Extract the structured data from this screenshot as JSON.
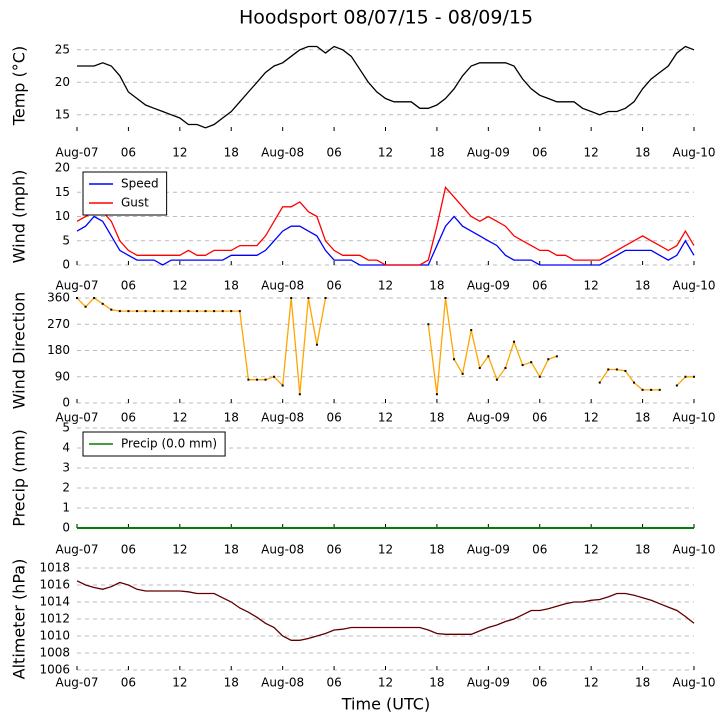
{
  "chart_data": [
    {
      "type": "line",
      "title": "Hoodsport 08/07/15 - 08/09/15",
      "ylabel": "Temp (°C)",
      "x": [
        0,
        1,
        2,
        3,
        4,
        5,
        6,
        7,
        8,
        9,
        10,
        11,
        12,
        13,
        14,
        15,
        16,
        17,
        18,
        19,
        20,
        21,
        22,
        23,
        24,
        25,
        26,
        27,
        28,
        29,
        30,
        31,
        32,
        33,
        34,
        35,
        36,
        37,
        38,
        39,
        40,
        41,
        42,
        43,
        44,
        45,
        46,
        47,
        48,
        49,
        50,
        51,
        52,
        53,
        54,
        55,
        56,
        57,
        58,
        59,
        60,
        61,
        62,
        63,
        64,
        65,
        66,
        67,
        68,
        69,
        70,
        71,
        72
      ],
      "series": [
        {
          "color": "#000000",
          "values": [
            22.5,
            22.5,
            22.5,
            23,
            22.5,
            21,
            18.5,
            17.5,
            16.5,
            16,
            15.5,
            15,
            14.5,
            13.5,
            13.5,
            13,
            13.5,
            14.5,
            15.5,
            17,
            18.5,
            20,
            21.5,
            22.5,
            23,
            24,
            25,
            25.5,
            25.5,
            24.5,
            25.5,
            25,
            24,
            22,
            20,
            18.5,
            17.5,
            17,
            17,
            17,
            16,
            16,
            16.5,
            17.5,
            19,
            21,
            22.5,
            23,
            23,
            23,
            23,
            22.5,
            20.5,
            19,
            18,
            17.5,
            17,
            17,
            17,
            16,
            15.5,
            15,
            15.5,
            15.5,
            16,
            17,
            19,
            20.5,
            21.5,
            22.5,
            24.5,
            25.5,
            25
          ]
        }
      ],
      "xlim": [
        0,
        72
      ],
      "ylim": [
        12.5,
        26.5
      ],
      "yticks": [
        15,
        20,
        25
      ],
      "grid": true,
      "xticks": [
        {
          "value": 0,
          "label": "Aug-07"
        },
        {
          "value": 6,
          "label": "06"
        },
        {
          "value": 12,
          "label": "12"
        },
        {
          "value": 18,
          "label": "18"
        },
        {
          "value": 24,
          "label": "Aug-08"
        },
        {
          "value": 30,
          "label": "06"
        },
        {
          "value": 36,
          "label": "12"
        },
        {
          "value": 42,
          "label": "18"
        },
        {
          "value": 48,
          "label": "Aug-09"
        },
        {
          "value": 54,
          "label": "06"
        },
        {
          "value": 60,
          "label": "12"
        },
        {
          "value": 66,
          "label": "18"
        },
        {
          "value": 72,
          "label": "Aug-10"
        }
      ]
    },
    {
      "type": "line",
      "ylabel": "Wind (mph)",
      "legend": "upper left",
      "x": [
        0,
        1,
        2,
        3,
        4,
        5,
        6,
        7,
        8,
        9,
        10,
        11,
        12,
        13,
        14,
        15,
        16,
        17,
        18,
        19,
        20,
        21,
        22,
        23,
        24,
        25,
        26,
        27,
        28,
        29,
        30,
        31,
        32,
        33,
        34,
        35,
        36,
        37,
        38,
        39,
        40,
        41,
        42,
        43,
        44,
        45,
        46,
        47,
        48,
        49,
        50,
        51,
        52,
        53,
        54,
        55,
        56,
        57,
        58,
        59,
        60,
        61,
        62,
        63,
        64,
        65,
        66,
        67,
        68,
        69,
        70,
        71,
        72
      ],
      "series": [
        {
          "name": "Speed",
          "color": "#0000ff",
          "values": [
            7,
            8,
            10,
            9,
            6,
            3,
            2,
            1,
            1,
            1,
            0,
            1,
            1,
            1,
            1,
            1,
            1,
            1,
            2,
            2,
            2,
            2,
            3,
            5,
            7,
            8,
            8,
            7,
            6,
            3,
            1,
            1,
            1,
            0,
            0,
            0,
            0,
            0,
            0,
            0,
            0,
            0,
            4,
            8,
            10,
            8,
            7,
            6,
            5,
            4,
            2,
            1,
            1,
            1,
            0,
            0,
            0,
            0,
            0,
            0,
            0,
            0,
            1,
            2,
            3,
            3,
            3,
            3,
            2,
            1,
            2,
            5,
            2
          ]
        },
        {
          "name": "Gust",
          "color": "#ff0000",
          "values": [
            9,
            10,
            11,
            11,
            9,
            5,
            3,
            2,
            2,
            2,
            2,
            2,
            2,
            3,
            2,
            2,
            3,
            3,
            3,
            4,
            4,
            4,
            6,
            9,
            12,
            12,
            13,
            11,
            10,
            5,
            3,
            2,
            2,
            2,
            1,
            1,
            0,
            0,
            0,
            0,
            0,
            1,
            8,
            16,
            14,
            12,
            10,
            9,
            10,
            9,
            8,
            6,
            5,
            4,
            3,
            3,
            2,
            2,
            1,
            1,
            1,
            1,
            2,
            3,
            4,
            5,
            6,
            5,
            4,
            3,
            4,
            7,
            4
          ]
        }
      ],
      "xlim": [
        0,
        72
      ],
      "ylim": [
        0,
        20
      ],
      "yticks": [
        0,
        5,
        10,
        15,
        20
      ],
      "grid": true,
      "xticks": [
        {
          "value": 0,
          "label": "Aug-07"
        },
        {
          "value": 6,
          "label": "06"
        },
        {
          "value": 12,
          "label": "12"
        },
        {
          "value": 18,
          "label": "18"
        },
        {
          "value": 24,
          "label": "Aug-08"
        },
        {
          "value": 30,
          "label": "06"
        },
        {
          "value": 36,
          "label": "12"
        },
        {
          "value": 42,
          "label": "18"
        },
        {
          "value": 48,
          "label": "Aug-09"
        },
        {
          "value": 54,
          "label": "06"
        },
        {
          "value": 60,
          "label": "12"
        },
        {
          "value": 66,
          "label": "18"
        },
        {
          "value": 72,
          "label": "Aug-10"
        }
      ]
    },
    {
      "type": "line",
      "ylabel": "Wind Direction",
      "x": [
        0,
        1,
        2,
        3,
        4,
        5,
        6,
        7,
        8,
        9,
        10,
        11,
        12,
        13,
        14,
        15,
        16,
        17,
        18,
        19,
        20,
        21,
        22,
        23,
        24,
        25,
        26,
        27,
        28,
        29,
        30,
        31,
        32,
        33,
        34,
        35,
        36,
        37,
        38,
        39,
        40,
        41,
        42,
        43,
        44,
        45,
        46,
        47,
        48,
        49,
        50,
        51,
        52,
        53,
        54,
        55,
        56,
        57,
        58,
        59,
        60,
        61,
        62,
        63,
        64,
        65,
        66,
        67,
        68,
        69,
        70,
        71,
        72
      ],
      "series": [
        {
          "color": "#ffa500",
          "marker_color": "#000000",
          "values": [
            360,
            330,
            360,
            340,
            320,
            315,
            315,
            315,
            315,
            315,
            315,
            315,
            315,
            315,
            315,
            315,
            315,
            315,
            315,
            315,
            80,
            80,
            80,
            90,
            60,
            360,
            30,
            360,
            200,
            360,
            null,
            null,
            null,
            null,
            null,
            null,
            null,
            null,
            null,
            null,
            null,
            270,
            30,
            360,
            150,
            100,
            250,
            120,
            160,
            80,
            120,
            210,
            130,
            140,
            90,
            150,
            160,
            null,
            null,
            null,
            null,
            70,
            115,
            115,
            110,
            70,
            45,
            45,
            45,
            null,
            60,
            90,
            90
          ]
        }
      ],
      "xlim": [
        0,
        72
      ],
      "ylim": [
        0,
        360
      ],
      "yticks": [
        0,
        90,
        180,
        270,
        360
      ],
      "grid": true,
      "xticks": [
        {
          "value": 0,
          "label": "Aug-07"
        },
        {
          "value": 6,
          "label": "06"
        },
        {
          "value": 12,
          "label": "12"
        },
        {
          "value": 18,
          "label": "18"
        },
        {
          "value": 24,
          "label": "Aug-08"
        },
        {
          "value": 30,
          "label": "06"
        },
        {
          "value": 36,
          "label": "12"
        },
        {
          "value": 42,
          "label": "18"
        },
        {
          "value": 48,
          "label": "Aug-09"
        },
        {
          "value": 54,
          "label": "06"
        },
        {
          "value": 60,
          "label": "12"
        },
        {
          "value": 66,
          "label": "18"
        },
        {
          "value": 72,
          "label": "Aug-10"
        }
      ]
    },
    {
      "type": "line",
      "ylabel": "Precip (mm)",
      "legend": "upper left",
      "x": [
        0,
        72
      ],
      "series": [
        {
          "name": "Precip (0.0 mm)",
          "color": "#008000",
          "values": [
            0,
            0
          ]
        }
      ],
      "xlim": [
        0,
        72
      ],
      "ylim": [
        0,
        5
      ],
      "yticks": [
        0,
        1,
        2,
        3,
        4,
        5
      ],
      "grid": true,
      "xticks": [
        {
          "value": 0,
          "label": "Aug-07"
        },
        {
          "value": 6,
          "label": "06"
        },
        {
          "value": 12,
          "label": "12"
        },
        {
          "value": 18,
          "label": "18"
        },
        {
          "value": 24,
          "label": "Aug-08"
        },
        {
          "value": 30,
          "label": "06"
        },
        {
          "value": 36,
          "label": "12"
        },
        {
          "value": 42,
          "label": "18"
        },
        {
          "value": 48,
          "label": "Aug-09"
        },
        {
          "value": 54,
          "label": "06"
        },
        {
          "value": 60,
          "label": "12"
        },
        {
          "value": 66,
          "label": "18"
        },
        {
          "value": 72,
          "label": "Aug-10"
        }
      ]
    },
    {
      "type": "line",
      "ylabel": "Altimeter (hPa)",
      "xlabel": "Time (UTC)",
      "x": [
        0,
        1,
        2,
        3,
        4,
        5,
        6,
        7,
        8,
        9,
        10,
        11,
        12,
        13,
        14,
        15,
        16,
        17,
        18,
        19,
        20,
        21,
        22,
        23,
        24,
        25,
        26,
        27,
        28,
        29,
        30,
        31,
        32,
        33,
        34,
        35,
        36,
        37,
        38,
        39,
        40,
        41,
        42,
        43,
        44,
        45,
        46,
        47,
        48,
        49,
        50,
        51,
        52,
        53,
        54,
        55,
        56,
        57,
        58,
        59,
        60,
        61,
        62,
        63,
        64,
        65,
        66,
        67,
        68,
        69,
        70,
        71,
        72
      ],
      "series": [
        {
          "color": "#600000",
          "values": [
            1016.5,
            1016,
            1015.7,
            1015.5,
            1015.8,
            1016.3,
            1016,
            1015.5,
            1015.3,
            1015.3,
            1015.3,
            1015.3,
            1015.3,
            1015.2,
            1015,
            1015,
            1015,
            1014.5,
            1014,
            1013.3,
            1012.8,
            1012.2,
            1011.5,
            1011,
            1010,
            1009.5,
            1009.5,
            1009.7,
            1010,
            1010.3,
            1010.7,
            1010.8,
            1011,
            1011,
            1011,
            1011,
            1011,
            1011,
            1011,
            1011,
            1011,
            1010.7,
            1010.3,
            1010.2,
            1010.2,
            1010.2,
            1010.2,
            1010.6,
            1011,
            1011.3,
            1011.7,
            1012,
            1012.5,
            1013,
            1013,
            1013.2,
            1013.5,
            1013.8,
            1014,
            1014,
            1014.2,
            1014.3,
            1014.6,
            1015,
            1015,
            1014.8,
            1014.5,
            1014.2,
            1013.8,
            1013.4,
            1013,
            1012.3,
            1011.5
          ]
        }
      ],
      "xlim": [
        0,
        72
      ],
      "ylim": [
        1006,
        1018
      ],
      "yticks": [
        1006,
        1008,
        1010,
        1012,
        1014,
        1016,
        1018
      ],
      "grid": true,
      "xticks": [
        {
          "value": 0,
          "label": "Aug-07"
        },
        {
          "value": 6,
          "label": "06"
        },
        {
          "value": 12,
          "label": "12"
        },
        {
          "value": 18,
          "label": "18"
        },
        {
          "value": 24,
          "label": "Aug-08"
        },
        {
          "value": 30,
          "label": "06"
        },
        {
          "value": 36,
          "label": "12"
        },
        {
          "value": 42,
          "label": "18"
        },
        {
          "value": 48,
          "label": "Aug-09"
        },
        {
          "value": 54,
          "label": "06"
        },
        {
          "value": 60,
          "label": "12"
        },
        {
          "value": 66,
          "label": "18"
        },
        {
          "value": 72,
          "label": "Aug-10"
        }
      ]
    }
  ]
}
